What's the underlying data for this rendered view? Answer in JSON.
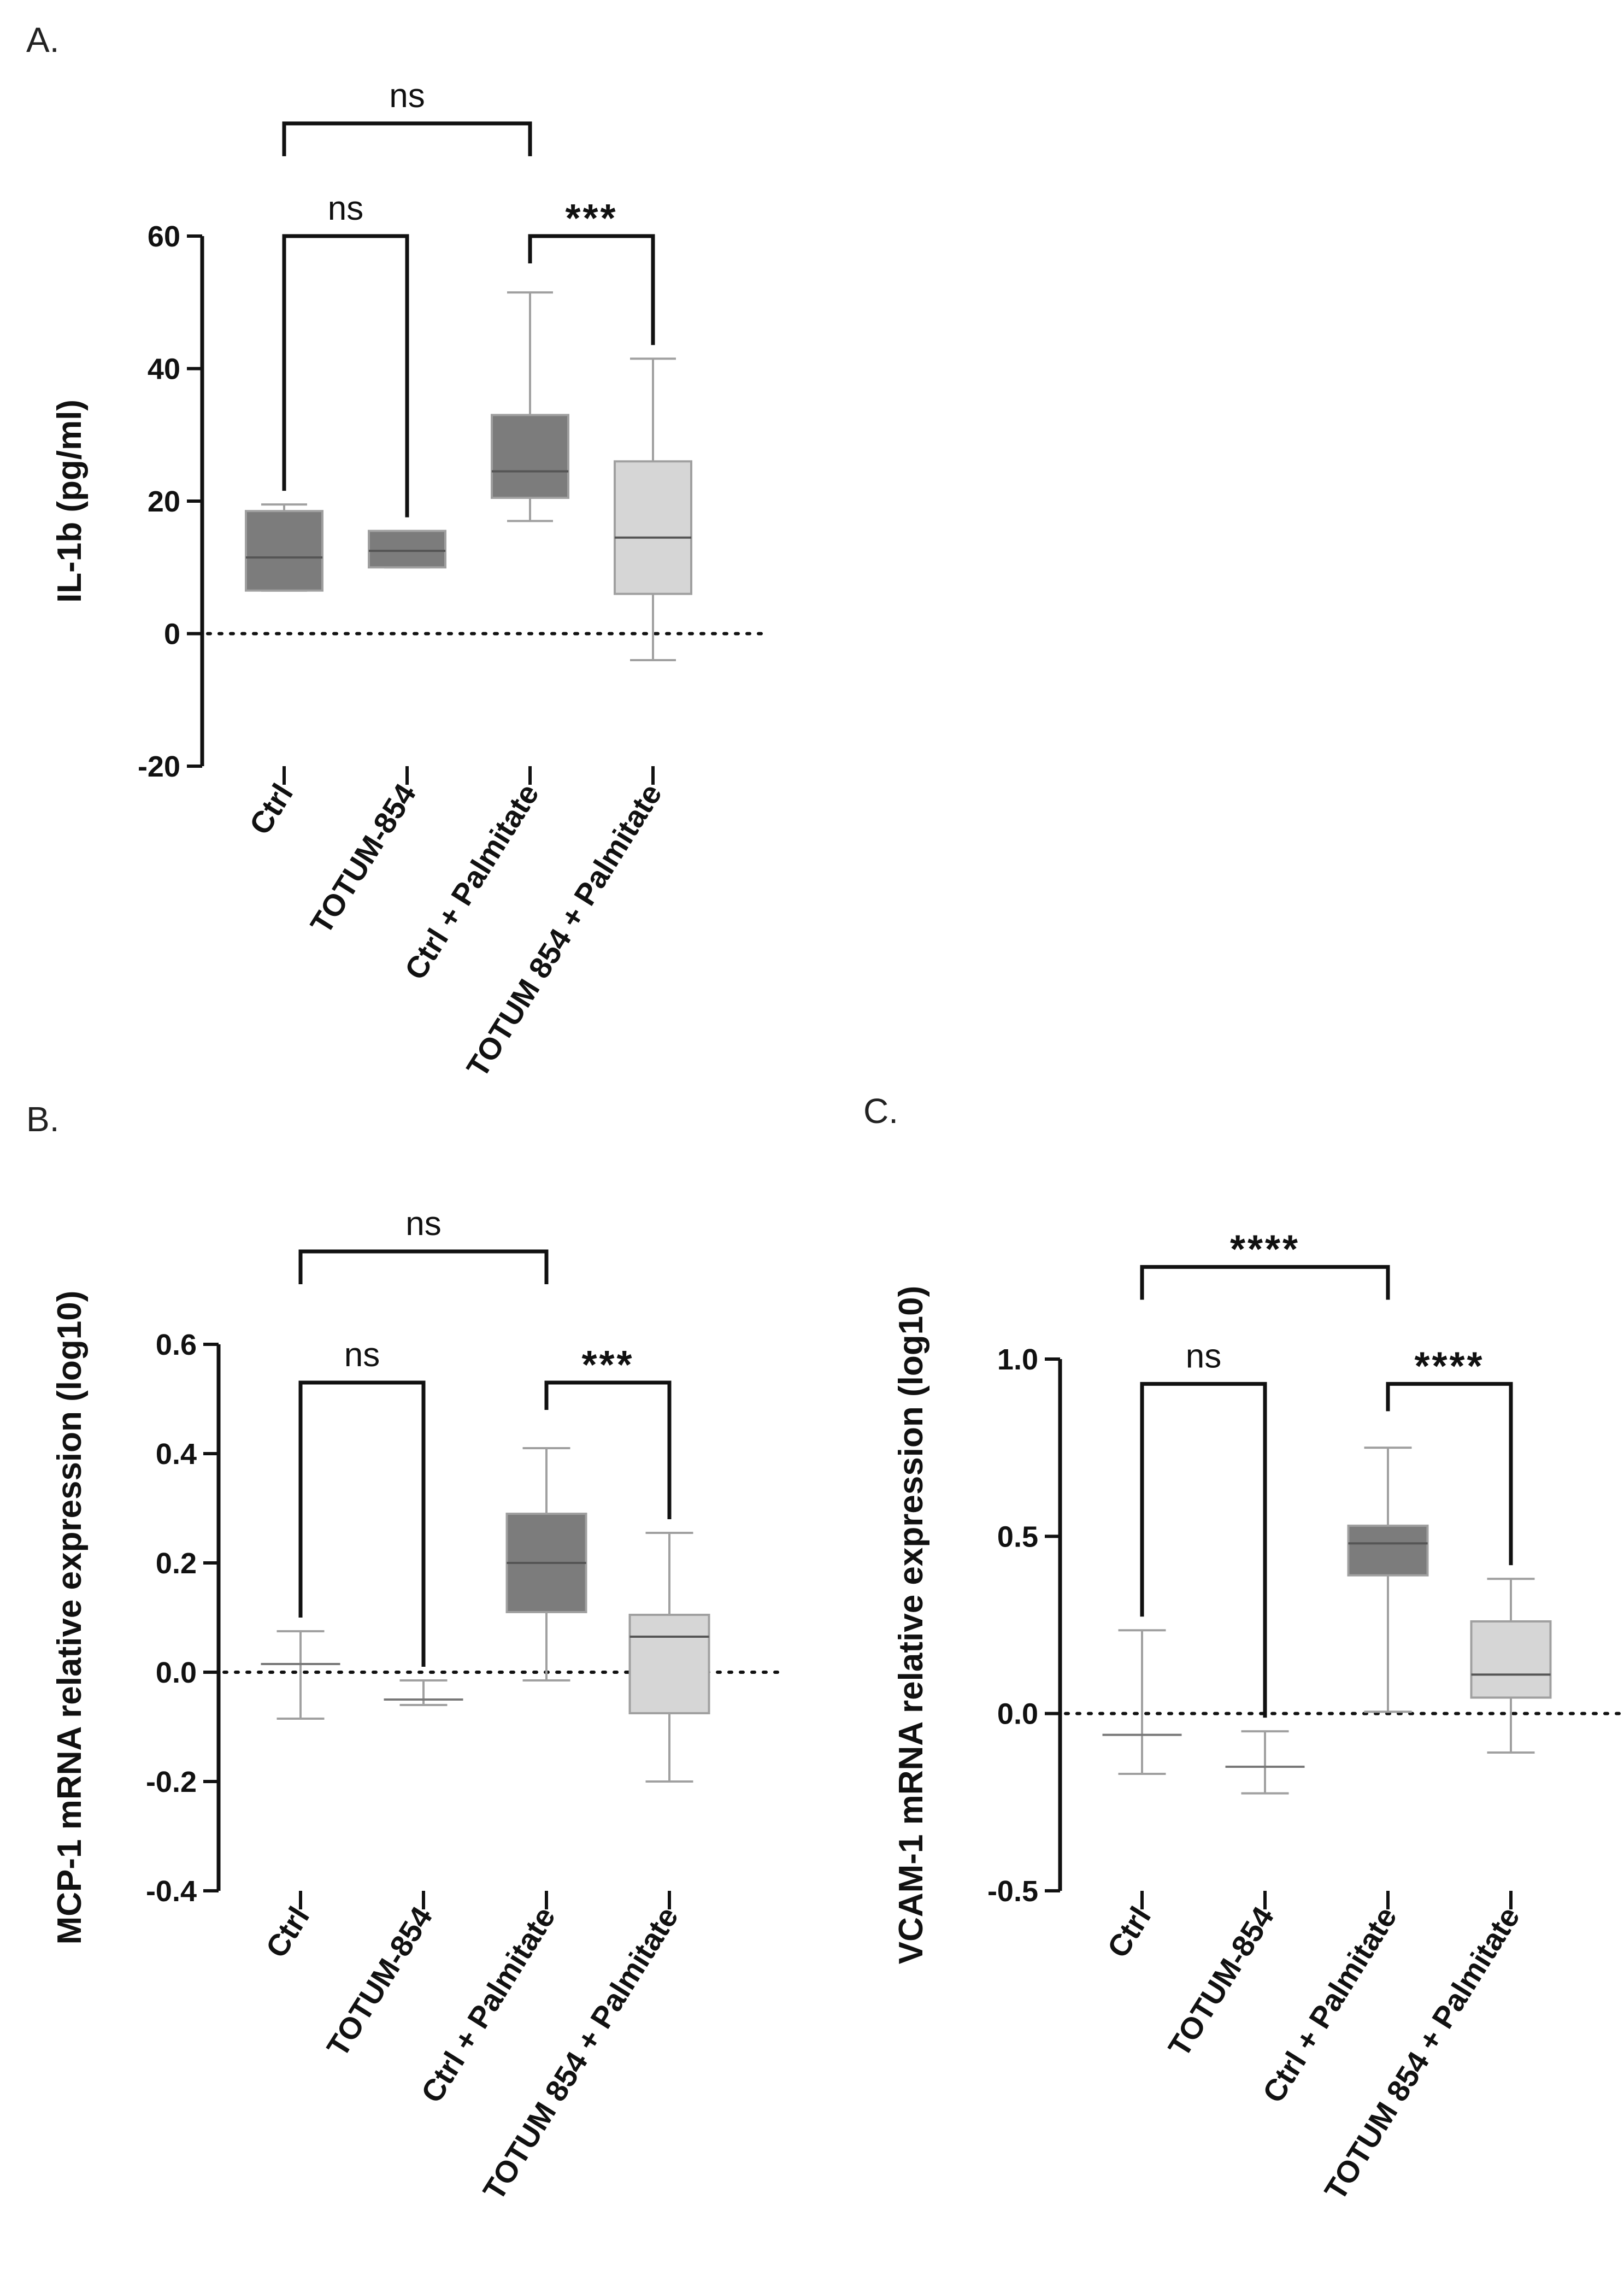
{
  "colors": {
    "dark_box": "#7c7c7c",
    "light_box": "#d6d6d6",
    "whisker": "#a0a0a0",
    "axis": "#111111"
  },
  "chart_data": [
    {
      "panel": "A.",
      "type": "box",
      "ylabel": "IL-1b (pg/ml)",
      "ylim": [
        -20,
        60
      ],
      "yticks": [
        "60",
        "40",
        "20",
        "0",
        "-20"
      ],
      "ytick_values": [
        60,
        40,
        20,
        0,
        -20
      ],
      "reference_line": 0,
      "categories": [
        "Ctrl",
        "TOTUM-854",
        "Ctrl + Palmitate",
        "TOTUM 854 + Palmitate"
      ],
      "boxes": [
        {
          "min": 6.5,
          "q1": 6.5,
          "median": 11.5,
          "q3": 18.5,
          "max": 19.5,
          "fill": "dark"
        },
        {
          "min": 10,
          "q1": 10,
          "median": 12.5,
          "q3": 15.5,
          "max": 15.5,
          "fill": "dark"
        },
        {
          "min": 17,
          "q1": 20.5,
          "median": 24.5,
          "q3": 33,
          "max": 51.5,
          "fill": "dark"
        },
        {
          "min": -4,
          "q1": 6,
          "median": 14.5,
          "q3": 26,
          "max": 41.5,
          "fill": "light"
        }
      ],
      "comparisons": [
        {
          "from": 0,
          "to": 2,
          "label": "ns",
          "y_value": 77
        },
        {
          "from": 0,
          "to": 1,
          "label": "ns",
          "y_value": 60
        },
        {
          "from": 2,
          "to": 3,
          "label": "***",
          "y_value": 60
        }
      ]
    },
    {
      "panel": "B.",
      "type": "box",
      "ylabel": "MCP-1 mRNA relative expression (log10)",
      "ylim": [
        -0.4,
        0.6
      ],
      "yticks": [
        "0.6",
        "0.4",
        "0.2",
        "0.0",
        "-0.2",
        "-0.4"
      ],
      "ytick_values": [
        0.6,
        0.4,
        0.2,
        0.0,
        -0.2,
        -0.4
      ],
      "reference_line": 0,
      "categories": [
        "Ctrl",
        "TOTUM-854",
        "Ctrl + Palmitate",
        "TOTUM 854 + Palmitate"
      ],
      "boxes": [
        {
          "min": -0.085,
          "q1": 0.015,
          "median": 0.015,
          "q3": 0.015,
          "max": 0.075,
          "fill": "dark"
        },
        {
          "min": -0.06,
          "q1": -0.05,
          "median": -0.05,
          "q3": -0.05,
          "max": -0.015,
          "fill": "dark"
        },
        {
          "min": -0.015,
          "q1": 0.11,
          "median": 0.2,
          "q3": 0.29,
          "max": 0.41,
          "fill": "dark"
        },
        {
          "min": -0.2,
          "q1": -0.075,
          "median": 0.065,
          "q3": 0.105,
          "max": 0.255,
          "fill": "light"
        }
      ],
      "comparisons": [
        {
          "from": 0,
          "to": 2,
          "label": "ns",
          "y_value": 0.77
        },
        {
          "from": 0,
          "to": 1,
          "label": "ns",
          "y_value": 0.53
        },
        {
          "from": 2,
          "to": 3,
          "label": "***",
          "y_value": 0.53
        }
      ]
    },
    {
      "panel": "C.",
      "type": "box",
      "ylabel": "VCAM-1 mRNA relative expression (log10)",
      "ylim": [
        -0.5,
        1.0
      ],
      "yticks": [
        "1.0",
        "0.5",
        "0.0",
        "-0.5"
      ],
      "ytick_values": [
        1.0,
        0.5,
        0.0,
        -0.5
      ],
      "reference_line": 0,
      "categories": [
        "Ctrl",
        "TOTUM-854",
        "Ctrl + Palmitate",
        "TOTUM 854 + Palmitate"
      ],
      "boxes": [
        {
          "min": -0.17,
          "q1": -0.06,
          "median": -0.06,
          "q3": -0.06,
          "max": 0.235,
          "fill": "dark"
        },
        {
          "min": -0.225,
          "q1": -0.15,
          "median": -0.15,
          "q3": -0.15,
          "max": -0.05,
          "fill": "dark"
        },
        {
          "min": 0.005,
          "q1": 0.39,
          "median": 0.48,
          "q3": 0.53,
          "max": 0.75,
          "fill": "dark"
        },
        {
          "min": -0.11,
          "q1": 0.045,
          "median": 0.11,
          "q3": 0.26,
          "max": 0.38,
          "fill": "light"
        }
      ],
      "comparisons": [
        {
          "from": 0,
          "to": 2,
          "label": "****",
          "y_value": 1.26
        },
        {
          "from": 0,
          "to": 1,
          "label": "ns",
          "y_value": 0.93
        },
        {
          "from": 2,
          "to": 3,
          "label": "****",
          "y_value": 0.93
        }
      ]
    }
  ]
}
